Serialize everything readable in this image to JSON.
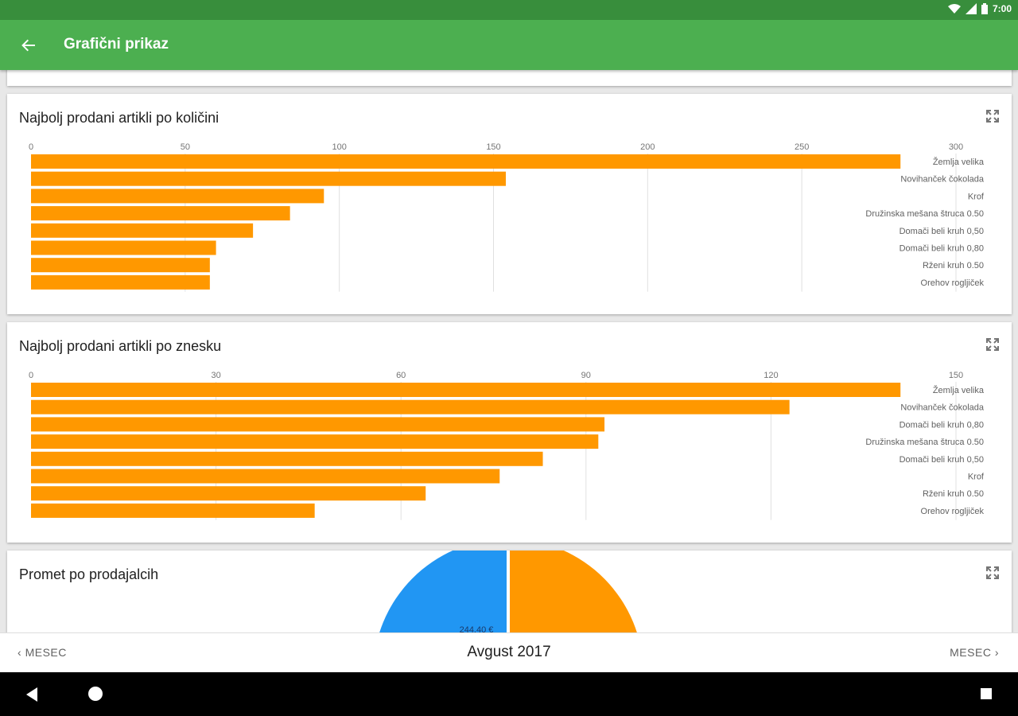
{
  "status_bar": {
    "time": "7:00",
    "icons": [
      "wifi-icon",
      "signal-icon",
      "battery-icon"
    ]
  },
  "app_bar": {
    "title": "Grafični prikaz",
    "back_icon": "arrow-back-icon"
  },
  "colors": {
    "primary": "#4caf50",
    "primary_dark": "#388e3c",
    "bar": "#ff9800",
    "pie_blue": "#2196f3",
    "pie_orange": "#ff9800"
  },
  "chart_data": [
    {
      "type": "bar",
      "orientation": "horizontal",
      "title": "Najbolj prodani artikli po količini",
      "categories": [
        "Žemlja velika",
        "Novihanček čokolada",
        "Krof",
        "Družinska mešana štruca 0.50",
        "Domači beli kruh 0,50",
        "Domači beli kruh  0,80",
        "Rženi kruh 0.50",
        "Orehov rogljiček"
      ],
      "values": [
        282,
        154,
        95,
        84,
        72,
        60,
        58,
        58
      ],
      "xlim": [
        0,
        300
      ],
      "ticks": [
        "0",
        "50",
        "100",
        "150",
        "200",
        "250",
        "300"
      ],
      "tick_values": [
        0,
        50,
        100,
        150,
        200,
        250,
        300
      ],
      "grid": true,
      "xlabel": "",
      "ylabel": ""
    },
    {
      "type": "bar",
      "orientation": "horizontal",
      "title": "Najbolj prodani artikli po znesku",
      "categories": [
        "Žemlja velika",
        "Novihanček čokolada",
        "Domači beli kruh  0,80",
        "Družinska mešana štruca 0.50",
        "Domači beli kruh 0,50",
        "Krof",
        "Rženi kruh 0.50",
        "Orehov rogljiček"
      ],
      "values": [
        141,
        123,
        93,
        92,
        83,
        76,
        64,
        46
      ],
      "xlim": [
        0,
        150
      ],
      "ticks": [
        "0",
        "30",
        "60",
        "90",
        "120",
        "150"
      ],
      "tick_values": [
        0,
        30,
        60,
        90,
        120,
        150
      ],
      "grid": true,
      "xlabel": "",
      "ylabel": ""
    },
    {
      "type": "pie",
      "title": "Promet po prodajalcih",
      "slices": [
        {
          "label": "244,40 €",
          "color": "#2196f3"
        },
        {
          "label": "",
          "color": "#ff9800"
        }
      ]
    }
  ],
  "bottom_bar": {
    "prev_label": "MESEC",
    "next_label": "MESEC",
    "period": "Avgust 2017"
  }
}
